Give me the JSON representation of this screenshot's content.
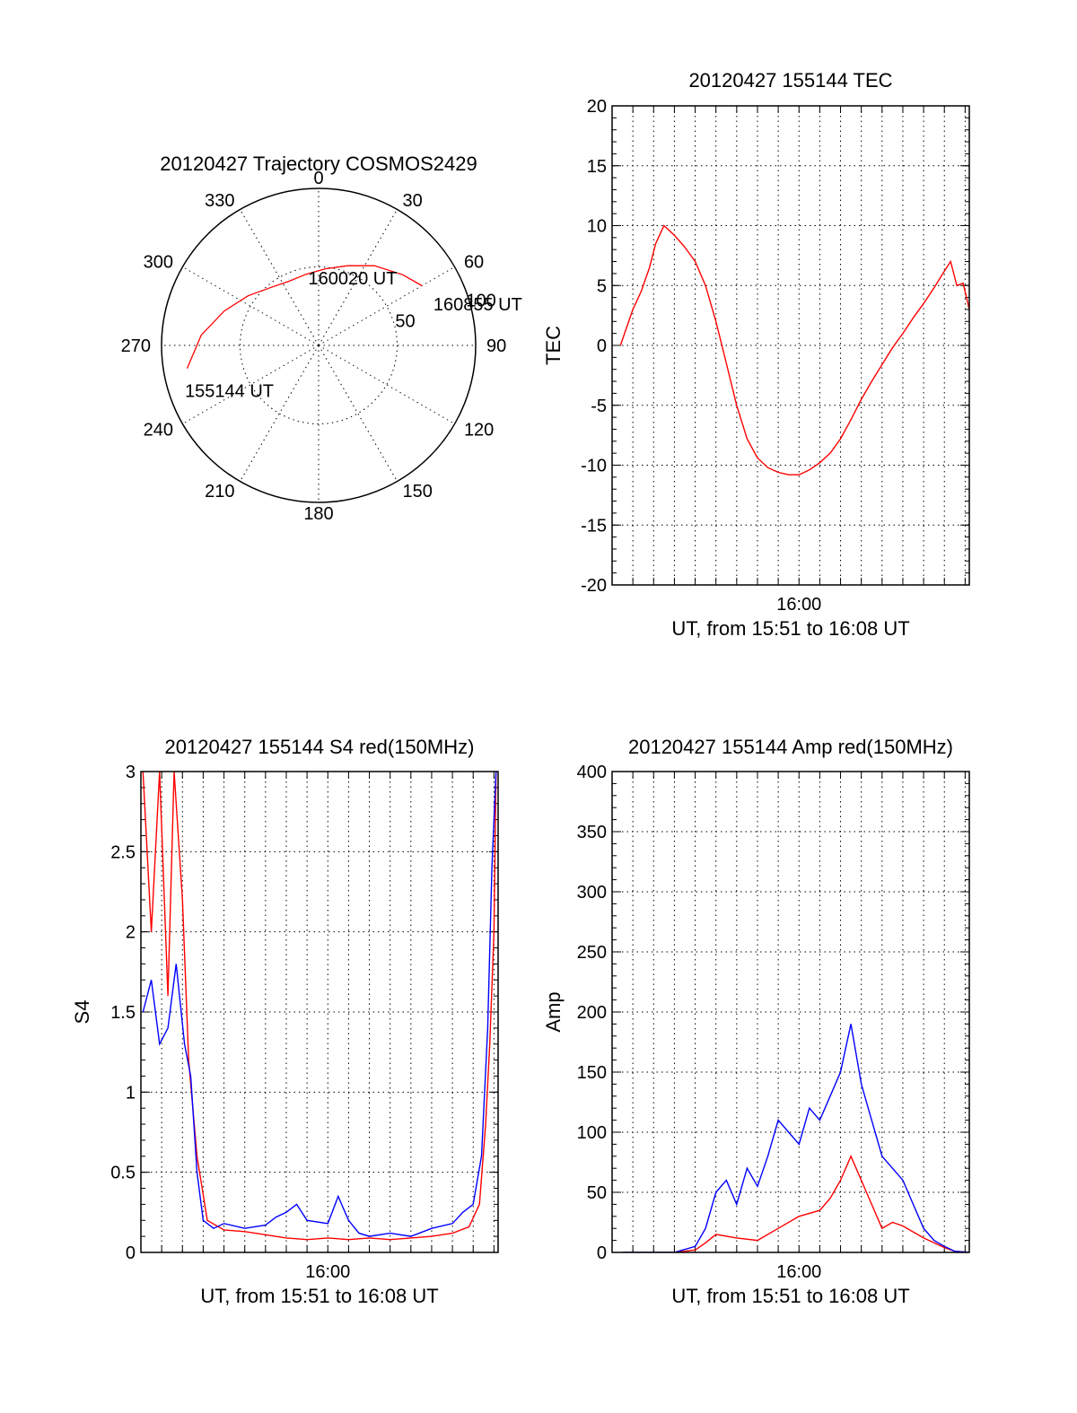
{
  "chart_data": [
    {
      "type": "polar",
      "title": "20120427 Trajectory COSMOS2429",
      "angle_labels": [
        "0",
        "30",
        "60",
        "90",
        "120",
        "150",
        "180",
        "210",
        "240",
        "270",
        "300",
        "330"
      ],
      "radius_labels": [
        "50",
        "100"
      ],
      "rlim": [
        0,
        100
      ],
      "series": [
        {
          "color": "#ff0000",
          "azimuth": [
            260,
            275,
            290,
            305,
            320,
            335,
            350,
            5,
            20,
            35,
            50,
            60
          ],
          "radius": [
            85,
            75,
            64,
            55,
            48,
            45,
            46,
            49,
            54,
            62,
            70,
            76
          ]
        }
      ],
      "annotations": [
        {
          "text": "155144 UT",
          "azimuth": 258,
          "radius": 87
        },
        {
          "text": "160020 UT",
          "azimuth": 353,
          "radius": 54
        },
        {
          "text": "160855 UT",
          "azimuth": 63,
          "radius": 82
        }
      ],
      "grid": true
    },
    {
      "type": "line",
      "title": "20120427 155144 TEC",
      "xlabel": "UT, from 15:51 to 16:08 UT",
      "ylabel": "TEC",
      "xlim_min": [
        -9.0,
        8.2
      ],
      "ylim": [
        -20,
        20
      ],
      "xtick_labels": [
        {
          "min": 0,
          "label": "16:00"
        }
      ],
      "ytick_labels": [
        "20",
        "15",
        "10",
        "5",
        "0",
        "-5",
        "-10",
        "-15",
        "-20"
      ],
      "series": [
        {
          "color": "#ff0000",
          "x": [
            -8.6,
            -8.3,
            -8.0,
            -7.6,
            -7.2,
            -6.9,
            -6.5,
            -6.0,
            -5.5,
            -5.0,
            -4.5,
            -4.0,
            -3.5,
            -3.0,
            -2.5,
            -2.0,
            -1.5,
            -1.0,
            -0.5,
            0.0,
            0.5,
            1.0,
            1.5,
            2.0,
            2.5,
            3.0,
            3.5,
            4.0,
            4.5,
            5.0,
            5.5,
            6.0,
            6.5,
            7.0,
            7.3,
            7.6,
            7.9,
            8.2
          ],
          "y": [
            0.0,
            1.5,
            3.0,
            4.5,
            6.5,
            8.5,
            10.0,
            9.2,
            8.2,
            7.0,
            5.0,
            2.0,
            -1.5,
            -5.0,
            -7.8,
            -9.4,
            -10.2,
            -10.6,
            -10.8,
            -10.8,
            -10.4,
            -9.8,
            -9.0,
            -7.8,
            -6.2,
            -4.5,
            -3.0,
            -1.6,
            -0.2,
            1.0,
            2.3,
            3.5,
            4.8,
            6.2,
            7.0,
            5.0,
            5.2,
            3.0
          ]
        }
      ],
      "grid": true
    },
    {
      "type": "line",
      "title": "20120427 155144 S4 red(150MHz)",
      "xlabel": "UT, from 15:51 to 16:08 UT",
      "ylabel": "S4",
      "xlim_min": [
        -9.0,
        8.2
      ],
      "ylim": [
        0,
        3
      ],
      "xtick_labels": [
        {
          "min": 0,
          "label": "16:00"
        }
      ],
      "ytick_labels": [
        "3",
        "2.5",
        "2",
        "1.5",
        "1",
        "0.5",
        "0"
      ],
      "series": [
        {
          "color": "#ff0000",
          "x": [
            -8.9,
            -8.5,
            -8.1,
            -7.7,
            -7.4,
            -7.0,
            -6.7,
            -6.3,
            -5.8,
            -5.0,
            -4.0,
            -3.0,
            -2.0,
            -1.0,
            0.0,
            1.0,
            2.0,
            3.0,
            4.0,
            5.0,
            6.0,
            6.8,
            7.3,
            7.6,
            7.8,
            8.0,
            8.1
          ],
          "y": [
            3.0,
            2.0,
            3.0,
            1.6,
            3.0,
            2.2,
            1.2,
            0.6,
            0.2,
            0.14,
            0.13,
            0.11,
            0.09,
            0.08,
            0.09,
            0.08,
            0.09,
            0.08,
            0.09,
            0.1,
            0.12,
            0.16,
            0.3,
            0.8,
            1.3,
            2.0,
            3.0
          ]
        },
        {
          "color": "#0000ff",
          "x": [
            -8.9,
            -8.5,
            -8.1,
            -7.7,
            -7.3,
            -6.9,
            -6.6,
            -6.3,
            -6.0,
            -5.5,
            -5.0,
            -4.0,
            -3.0,
            -2.5,
            -2.0,
            -1.5,
            -1.0,
            0.0,
            0.5,
            1.0,
            1.5,
            2.0,
            3.0,
            4.0,
            5.0,
            6.0,
            6.5,
            7.0,
            7.4,
            7.7,
            7.9,
            8.1
          ],
          "y": [
            1.5,
            1.7,
            1.3,
            1.4,
            1.8,
            1.3,
            1.1,
            0.5,
            0.2,
            0.15,
            0.18,
            0.15,
            0.17,
            0.22,
            0.25,
            0.3,
            0.2,
            0.18,
            0.35,
            0.2,
            0.12,
            0.1,
            0.12,
            0.1,
            0.15,
            0.18,
            0.25,
            0.3,
            0.6,
            1.4,
            2.4,
            3.0
          ]
        }
      ],
      "grid": true
    },
    {
      "type": "line",
      "title": "20120427 155144 Amp red(150MHz)",
      "xlabel": "UT, from 15:51 to 16:08 UT",
      "ylabel": "Amp",
      "xlim_min": [
        -9.0,
        8.2
      ],
      "ylim": [
        0,
        400
      ],
      "xtick_labels": [
        {
          "min": 0,
          "label": "16:00"
        }
      ],
      "ytick_labels": [
        "400",
        "350",
        "300",
        "250",
        "200",
        "150",
        "100",
        "50",
        "0"
      ],
      "series": [
        {
          "color": "#ff0000",
          "x": [
            -8.5,
            -6.0,
            -5.0,
            -4.5,
            -4.0,
            -3.0,
            -2.0,
            -1.0,
            0.0,
            1.0,
            1.5,
            2.0,
            2.5,
            3.0,
            3.5,
            4.0,
            4.5,
            5.0,
            6.0,
            7.0,
            7.5,
            8.2
          ],
          "y": [
            0,
            0,
            2,
            8,
            15,
            12,
            10,
            20,
            30,
            35,
            45,
            60,
            80,
            60,
            40,
            20,
            25,
            22,
            12,
            4,
            1,
            0
          ]
        },
        {
          "color": "#0000ff",
          "x": [
            -8.5,
            -6.0,
            -5.0,
            -4.5,
            -4.0,
            -3.5,
            -3.0,
            -2.5,
            -2.0,
            -1.5,
            -1.0,
            -0.5,
            0.0,
            0.5,
            1.0,
            1.5,
            2.0,
            2.5,
            3.0,
            3.5,
            4.0,
            4.5,
            5.0,
            5.5,
            6.0,
            6.5,
            7.0,
            7.5,
            8.2
          ],
          "y": [
            0,
            0,
            5,
            20,
            50,
            60,
            40,
            70,
            55,
            80,
            110,
            100,
            90,
            120,
            110,
            130,
            150,
            190,
            140,
            110,
            80,
            70,
            60,
            40,
            20,
            10,
            5,
            1,
            0
          ]
        }
      ],
      "grid": true
    }
  ]
}
